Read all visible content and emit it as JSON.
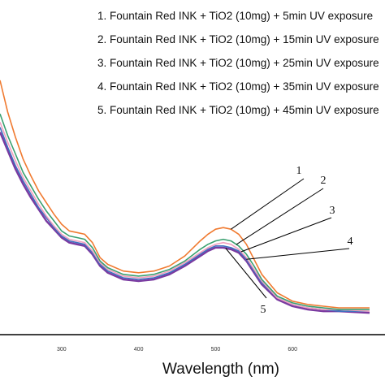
{
  "chart_data": {
    "type": "line",
    "title": "",
    "xlabel": "Wavelength (nm)",
    "ylabel": "",
    "xlim": [
      220,
      720
    ],
    "ylim": [
      0,
      2.0
    ],
    "x_ticks": [
      "300",
      "400",
      "500",
      "600"
    ],
    "grid": false,
    "legend_position": "top-right",
    "series": [
      {
        "name": "1. Fountain Red INK + TiO2 (10mg) + 5min UV exposure",
        "color": "#f07a30",
        "x": [
          220,
          230,
          240,
          250,
          260,
          270,
          280,
          290,
          300,
          310,
          320,
          330,
          340,
          350,
          360,
          380,
          400,
          420,
          440,
          460,
          480,
          490,
          500,
          510,
          520,
          530,
          540,
          550,
          560,
          580,
          600,
          620,
          640,
          660,
          700
        ],
        "y": [
          1.52,
          1.33,
          1.18,
          1.05,
          0.95,
          0.86,
          0.79,
          0.72,
          0.66,
          0.62,
          0.61,
          0.6,
          0.55,
          0.46,
          0.42,
          0.38,
          0.37,
          0.38,
          0.41,
          0.47,
          0.56,
          0.6,
          0.63,
          0.64,
          0.63,
          0.6,
          0.54,
          0.45,
          0.36,
          0.25,
          0.2,
          0.18,
          0.17,
          0.16,
          0.16
        ]
      },
      {
        "name": "2. Fountain Red INK + TiO2 (10mg) + 15min UV exposure",
        "color": "#3aa070",
        "x": [
          220,
          230,
          240,
          250,
          260,
          270,
          280,
          290,
          300,
          310,
          320,
          330,
          340,
          350,
          360,
          380,
          400,
          420,
          440,
          460,
          480,
          490,
          500,
          510,
          520,
          530,
          540,
          550,
          560,
          580,
          600,
          620,
          640,
          660,
          700
        ],
        "y": [
          1.32,
          1.19,
          1.08,
          0.97,
          0.89,
          0.81,
          0.74,
          0.68,
          0.62,
          0.59,
          0.58,
          0.57,
          0.52,
          0.44,
          0.4,
          0.36,
          0.35,
          0.36,
          0.39,
          0.44,
          0.51,
          0.54,
          0.56,
          0.57,
          0.56,
          0.53,
          0.48,
          0.41,
          0.33,
          0.23,
          0.19,
          0.17,
          0.16,
          0.15,
          0.15
        ]
      },
      {
        "name": "3. Fountain Red INK + TiO2 (10mg) + 25min UV exposure",
        "color": "#f2a0c0",
        "x": [
          220,
          230,
          240,
          250,
          260,
          270,
          280,
          290,
          300,
          310,
          320,
          330,
          340,
          350,
          360,
          380,
          400,
          420,
          440,
          460,
          480,
          490,
          500,
          510,
          520,
          530,
          540,
          550,
          560,
          580,
          600,
          620,
          640,
          660,
          700
        ],
        "y": [
          1.27,
          1.15,
          1.04,
          0.94,
          0.86,
          0.78,
          0.71,
          0.65,
          0.6,
          0.57,
          0.56,
          0.55,
          0.5,
          0.43,
          0.39,
          0.35,
          0.34,
          0.35,
          0.38,
          0.43,
          0.49,
          0.52,
          0.54,
          0.55,
          0.54,
          0.51,
          0.46,
          0.39,
          0.32,
          0.22,
          0.18,
          0.16,
          0.15,
          0.15,
          0.14
        ]
      },
      {
        "name": "4. Fountain Red INK + TiO2 (10mg) + 35min UV exposure",
        "color": "#4070c0",
        "x": [
          220,
          230,
          240,
          250,
          260,
          270,
          280,
          290,
          300,
          310,
          320,
          330,
          340,
          350,
          360,
          380,
          400,
          420,
          440,
          460,
          480,
          490,
          500,
          510,
          520,
          530,
          540,
          550,
          560,
          580,
          600,
          620,
          640,
          660,
          700
        ],
        "y": [
          1.24,
          1.12,
          1.01,
          0.92,
          0.84,
          0.76,
          0.7,
          0.64,
          0.59,
          0.56,
          0.55,
          0.54,
          0.49,
          0.42,
          0.38,
          0.34,
          0.33,
          0.34,
          0.37,
          0.42,
          0.48,
          0.51,
          0.53,
          0.53,
          0.52,
          0.5,
          0.45,
          0.38,
          0.31,
          0.22,
          0.18,
          0.16,
          0.15,
          0.14,
          0.14
        ]
      },
      {
        "name": "5. Fountain Red INK + TiO2 (10mg) + 45min UV exposure",
        "color": "#7a3aa0",
        "x": [
          220,
          230,
          240,
          250,
          260,
          270,
          280,
          290,
          300,
          310,
          320,
          330,
          340,
          350,
          360,
          380,
          400,
          420,
          440,
          460,
          480,
          490,
          500,
          510,
          520,
          530,
          540,
          550,
          560,
          580,
          600,
          620,
          640,
          660,
          700
        ],
        "y": [
          1.21,
          1.1,
          0.99,
          0.9,
          0.82,
          0.75,
          0.68,
          0.63,
          0.58,
          0.55,
          0.54,
          0.53,
          0.48,
          0.41,
          0.37,
          0.33,
          0.32,
          0.33,
          0.36,
          0.41,
          0.47,
          0.5,
          0.52,
          0.52,
          0.51,
          0.49,
          0.44,
          0.37,
          0.3,
          0.21,
          0.17,
          0.15,
          0.14,
          0.14,
          0.13
        ]
      }
    ],
    "legend": [
      "1. Fountain Red INK + TiO2 (10mg) + 5min UV exposure",
      "2. Fountain Red INK + TiO2 (10mg) + 15min UV exposure",
      "3. Fountain Red INK + TiO2 (10mg) + 25min UV exposure",
      "4. Fountain Red INK + TiO2 (10mg) + 35min UV exposure",
      "5. Fountain Red INK + TiO2 (10mg) + 45min UV exposure"
    ],
    "annotations": [
      {
        "label": "1",
        "points_to_x": 520
      },
      {
        "label": "2",
        "points_to_x": 527
      },
      {
        "label": "3",
        "points_to_x": 533
      },
      {
        "label": "4",
        "points_to_x": 540
      },
      {
        "label": "5",
        "points_to_x": 513
      }
    ]
  }
}
